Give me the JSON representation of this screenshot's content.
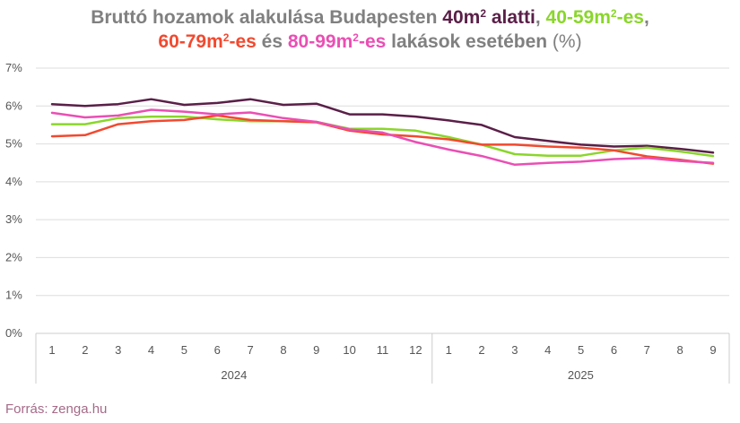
{
  "title": {
    "part1": "Bruttó hozamok alakulása Budapesten ",
    "s1_base": "40m",
    "s1_sup": "2",
    "s1_tail": " alatti",
    "sep1": ", ",
    "s2_base": "40-59m",
    "s2_sup": "2",
    "s2_tail": "-es",
    "sep2": ",",
    "s3_base": "60-79m",
    "s3_sup": "2",
    "s3_tail": "-es",
    "and": " és ",
    "s4_base": "80-99m",
    "s4_sup": "2",
    "s4_tail": "-es",
    "part2": " lakások esetében ",
    "unit": "(%)"
  },
  "source": "Forrás: zenga.hu",
  "colors": {
    "s1": "#5a1f48",
    "s2": "#8ad62b",
    "s3": "#f2492f",
    "s4": "#ea4fb4",
    "grid": "#dddddd",
    "axis": "#cccccc",
    "text": "#555555"
  },
  "chart_data": {
    "type": "line",
    "ylim": [
      0,
      7
    ],
    "yticks": [
      "0%",
      "1%",
      "2%",
      "3%",
      "4%",
      "5%",
      "6%",
      "7%"
    ],
    "x": [
      "1",
      "2",
      "3",
      "4",
      "5",
      "6",
      "7",
      "8",
      "9",
      "10",
      "11",
      "12",
      "1",
      "2",
      "3",
      "4",
      "5",
      "6",
      "7",
      "8",
      "9"
    ],
    "years": [
      {
        "label": "2024",
        "from": 0,
        "to": 11
      },
      {
        "label": "2025",
        "from": 12,
        "to": 20
      }
    ],
    "grid": true,
    "series": [
      {
        "key": "s1",
        "values": [
          6.05,
          6.0,
          6.05,
          6.18,
          6.03,
          6.08,
          6.18,
          6.03,
          6.06,
          5.78,
          5.78,
          5.72,
          5.62,
          5.5,
          5.18,
          5.08,
          4.98,
          4.93,
          4.95,
          4.87,
          4.77
        ]
      },
      {
        "key": "s2",
        "values": [
          5.52,
          5.52,
          5.68,
          5.72,
          5.72,
          5.65,
          5.6,
          5.6,
          5.58,
          5.4,
          5.4,
          5.35,
          5.18,
          4.98,
          4.73,
          4.69,
          4.69,
          4.83,
          4.9,
          4.8,
          4.68
        ]
      },
      {
        "key": "s3",
        "values": [
          5.2,
          5.23,
          5.52,
          5.6,
          5.63,
          5.75,
          5.63,
          5.6,
          5.57,
          5.35,
          5.25,
          5.2,
          5.12,
          4.98,
          4.98,
          4.93,
          4.9,
          4.83,
          4.67,
          4.58,
          4.48
        ]
      },
      {
        "key": "s4",
        "values": [
          5.82,
          5.7,
          5.75,
          5.9,
          5.85,
          5.78,
          5.83,
          5.68,
          5.58,
          5.38,
          5.3,
          5.05,
          4.85,
          4.68,
          4.45,
          4.5,
          4.53,
          4.6,
          4.63,
          4.55,
          4.5
        ]
      }
    ]
  }
}
